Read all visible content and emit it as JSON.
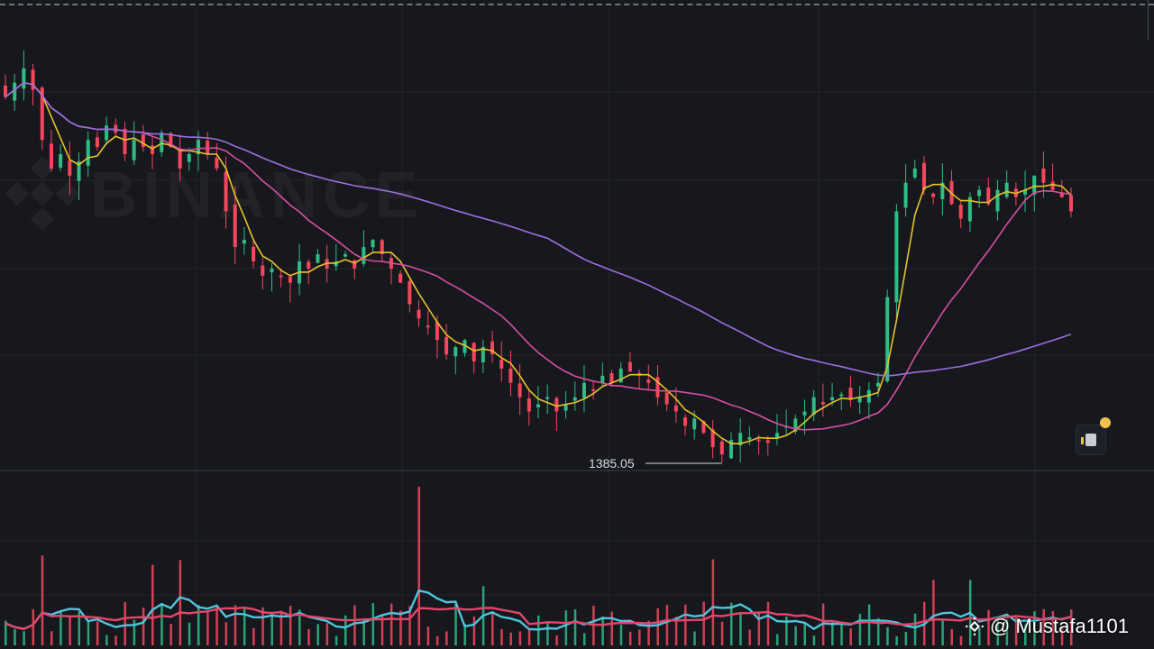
{
  "chart_data": [
    {
      "type": "candlestick",
      "series": [
        {
          "name": "",
          "color": "#e6c229",
          "kind": "moving-average-short"
        },
        {
          "name": "",
          "color": "#d64fa0",
          "kind": "moving-average-mid"
        },
        {
          "name": "",
          "color": "#9b6fe0",
          "kind": "moving-average-long"
        }
      ],
      "up_color": "#2ebd85",
      "down_color": "#f6465d",
      "ohlc_close_profile": [
        1640,
        1650,
        1660,
        1645,
        1610,
        1590,
        1600,
        1585,
        1595,
        1610,
        1605,
        1620,
        1615,
        1600,
        1610,
        1605,
        1600,
        1615,
        1605,
        1590,
        1600,
        1610,
        1600,
        1590,
        1560,
        1535,
        1540,
        1525,
        1515,
        1520,
        1515,
        1510,
        1525,
        1520,
        1530,
        1520,
        1525,
        1530,
        1520,
        1535,
        1540,
        1530,
        1520,
        1510,
        1495,
        1485,
        1480,
        1470,
        1460,
        1465,
        1470,
        1455,
        1465,
        1460,
        1450,
        1440,
        1430,
        1420,
        1425,
        1430,
        1420,
        1425,
        1430,
        1440,
        1435,
        1445,
        1440,
        1450,
        1448,
        1445,
        1440,
        1430,
        1425,
        1420,
        1410,
        1415,
        1405,
        1395,
        1390,
        1400,
        1405,
        1402,
        1400,
        1398,
        1405,
        1410,
        1415,
        1420,
        1430,
        1425,
        1430,
        1432,
        1428,
        1430,
        1435,
        1440,
        1500,
        1560,
        1580,
        1590,
        1575,
        1570,
        1580,
        1565,
        1555,
        1570,
        1575,
        1565,
        1575,
        1580,
        1570,
        1575,
        1585,
        1580,
        1575,
        1570,
        1560
      ],
      "low_marker": "1385.05",
      "watermark": "BINANCE"
    },
    {
      "type": "bar",
      "kind": "volume",
      "up_color": "#2ebd85",
      "down_color": "#f6465d",
      "lines": [
        {
          "name": "",
          "color": "#4fc4dd"
        },
        {
          "name": "",
          "color": "#e3466c"
        }
      ]
    }
  ],
  "credit": {
    "handle": "@ Mustafa1101"
  },
  "icons": {
    "note": "note-icon",
    "credit_logo": "binance-logo-icon"
  }
}
